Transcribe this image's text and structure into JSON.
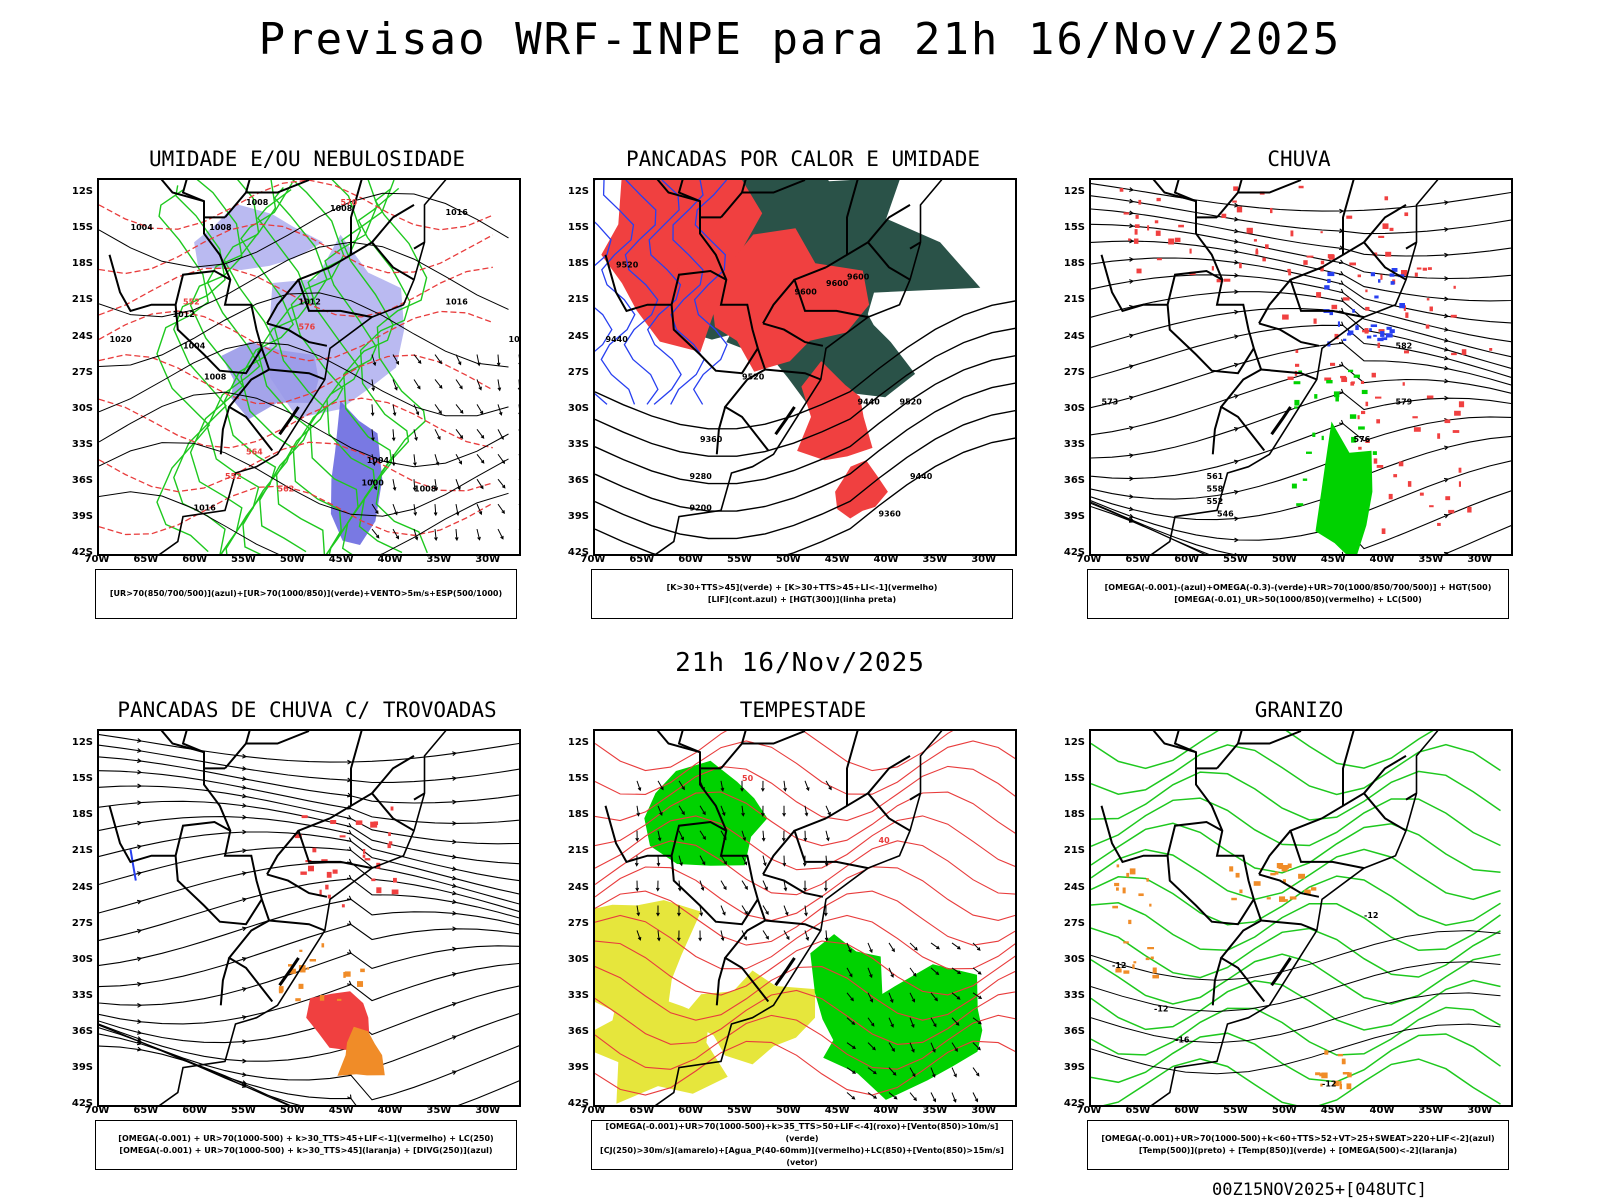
{
  "title": "Previsao WRF-INPE  para 21h 16/Nov/2025",
  "mid_time": "21h 16/Nov/2025",
  "footer": "00Z15NOV2025+[048UTC]",
  "lat_labels": [
    "12S",
    "15S",
    "18S",
    "21S",
    "24S",
    "27S",
    "30S",
    "33S",
    "36S",
    "39S",
    "42S"
  ],
  "lon_labels": [
    "70W",
    "65W",
    "60W",
    "55W",
    "50W",
    "45W",
    "40W",
    "35W",
    "30W"
  ],
  "colors": {
    "blue_fill": "#b3b3f0",
    "green_contour": "#1ec81e",
    "red_contour": "#e83c3c",
    "red_fill": "#f04040",
    "dark_teal": "#2a5248",
    "yellow_fill": "#e6e63c",
    "orange": "#f08c28",
    "blue_line": "#2840f0",
    "bright_green": "#00d200"
  },
  "panels": [
    {
      "id": "umidade",
      "title": "UMIDADE E/OU NEBULOSIDADE",
      "legend": [
        "[UR>70(850/700/500)](azul)+[UR>70(1000/850)](verde)+VENTO>5m/s+ESP(500/1000)"
      ],
      "labels": [
        "1008",
        "1008",
        "1008",
        "1016",
        "1004",
        "1012",
        "1004",
        "1012",
        "1020",
        "1016",
        "1020",
        "1008",
        "1004",
        "1000",
        "1008",
        "1016",
        "570",
        "552",
        "576",
        "564",
        "552",
        "562"
      ]
    },
    {
      "id": "pancadas-calor",
      "title": "PANCADAS POR CALOR E UMIDADE",
      "legend": [
        "[K>30+TTS>45](verde) + [K>30+TTS>45+LI<-1](vermelho)",
        "[LIF](cont.azul) + [HGT(300)](linha preta)"
      ],
      "labels": [
        "9600",
        "9520",
        "9440",
        "9600",
        "9600",
        "9520",
        "9440",
        "9360",
        "9280",
        "9200",
        "9520",
        "9440",
        "9360"
      ]
    },
    {
      "id": "chuva",
      "title": "CHUVA",
      "legend": [
        "[OMEGA(-0.001)-(azul)+OMEGA(-0.3)-(verde)+UR>70(1000/850/700/500)] + HGT(500)",
        "[OMEGA(-0.01)_UR>50(1000/850)(vermelho) + LC(500)"
      ],
      "labels": [
        "573",
        "579",
        "582",
        "576",
        "561",
        "558",
        "552",
        "546"
      ]
    },
    {
      "id": "trovoadas",
      "title": "PANCADAS DE CHUVA C/ TROVOADAS",
      "legend": [
        "[OMEGA(-0.001) + UR>70(1000-500) + k>30_TTS>45+LIF<-1](vermelho) + LC(250)",
        "[OMEGA(-0.001) + UR>70(1000-500) + k>30_TTS>45](laranja) + [DIVG(250)](azul)"
      ],
      "labels": []
    },
    {
      "id": "tempestade",
      "title": "TEMPESTADE",
      "legend": [
        "[OMEGA(-0.001)+UR>70(1000-500)+k>35_TTS>50+LIF<-4](roxo)+[Vento(850)>10m/s](verde)",
        "[CJ(250)>30m/s](amarelo)+[Agua_P(40-60mm)](vermelho)+LC(850)+[Vento(850)>15m/s](vetor)"
      ],
      "labels": [
        "50",
        "40"
      ]
    },
    {
      "id": "granizo",
      "title": "GRANIZO",
      "legend": [
        "[OMEGA(-0.001)+UR>70(1000-500)+k<60+TTS>52+VT>25+SWEAT>220+LIF<-2](azul)",
        "[Temp(500)](preto) + [Temp(850)](verde) + [OMEGA(500)<-2](laranja)"
      ],
      "labels": [
        "-12",
        "-12",
        "-16",
        "-12",
        "-12"
      ]
    }
  ]
}
